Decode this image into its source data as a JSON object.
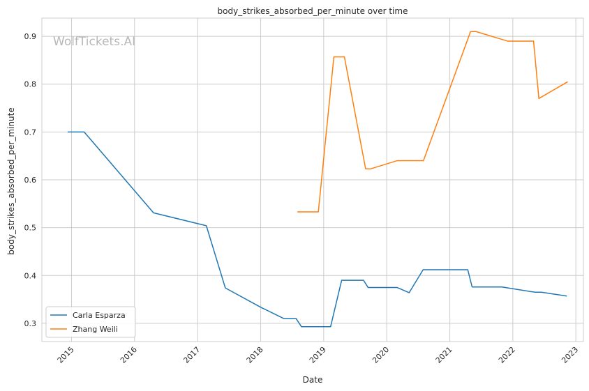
{
  "chart_data": {
    "type": "line",
    "title": "body_strikes_absorbed_per_minute over time",
    "xlabel": "Date",
    "ylabel": "body_strikes_absorbed_per_minute",
    "watermark": "WolfTickets.AI",
    "x_ticks": [
      "2015",
      "2016",
      "2017",
      "2018",
      "2019",
      "2020",
      "2021",
      "2022",
      "2023"
    ],
    "y_ticks": [
      "0.3",
      "0.4",
      "0.5",
      "0.6",
      "0.7",
      "0.8",
      "0.9"
    ],
    "xlim": [
      "2014-07-13",
      "2023-02-14"
    ],
    "ylim": [
      0.262,
      0.938
    ],
    "grid": true,
    "legend_position": "lower-left",
    "series": [
      {
        "name": "Carla Esparza",
        "color": "#1f77b4",
        "points": [
          [
            "2014-12-10",
            0.7
          ],
          [
            "2015-03-15",
            0.7
          ],
          [
            "2016-04-20",
            0.531
          ],
          [
            "2017-02-20",
            0.504
          ],
          [
            "2017-06-10",
            0.374
          ],
          [
            "2017-12-30",
            0.334
          ],
          [
            "2018-05-15",
            0.31
          ],
          [
            "2018-07-25",
            0.31
          ],
          [
            "2018-08-25",
            0.293
          ],
          [
            "2019-02-10",
            0.293
          ],
          [
            "2019-04-15",
            0.39
          ],
          [
            "2019-08-20",
            0.39
          ],
          [
            "2019-09-15",
            0.375
          ],
          [
            "2020-03-01",
            0.375
          ],
          [
            "2020-05-10",
            0.364
          ],
          [
            "2020-07-30",
            0.412
          ],
          [
            "2021-04-15",
            0.412
          ],
          [
            "2021-05-10",
            0.376
          ],
          [
            "2021-10-30",
            0.376
          ],
          [
            "2022-05-10",
            0.365
          ],
          [
            "2022-06-15",
            0.365
          ],
          [
            "2022-11-10",
            0.357
          ]
        ]
      },
      {
        "name": "Zhang Weili",
        "color": "#ff7f0e",
        "points": [
          [
            "2018-08-01",
            0.533
          ],
          [
            "2018-12-01",
            0.533
          ],
          [
            "2019-03-01",
            0.857
          ],
          [
            "2019-05-01",
            0.857
          ],
          [
            "2019-09-01",
            0.623
          ],
          [
            "2019-10-01",
            0.623
          ],
          [
            "2020-03-01",
            0.64
          ],
          [
            "2020-08-01",
            0.64
          ],
          [
            "2021-05-01",
            0.91
          ],
          [
            "2021-06-01",
            0.91
          ],
          [
            "2021-12-01",
            0.89
          ],
          [
            "2022-05-01",
            0.89
          ],
          [
            "2022-06-01",
            0.77
          ],
          [
            "2022-11-15",
            0.805
          ]
        ]
      }
    ]
  }
}
